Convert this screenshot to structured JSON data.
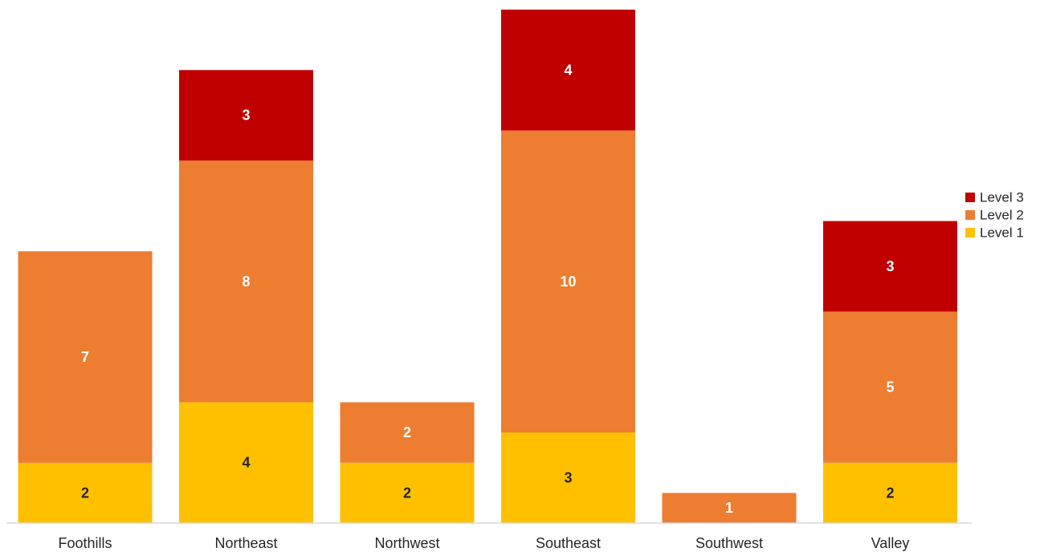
{
  "chart_data": {
    "type": "bar",
    "stacked": true,
    "title": "",
    "xlabel": "",
    "ylabel": "",
    "ylim": [
      0,
      17
    ],
    "grid": false,
    "legend_position": "right",
    "categories": [
      "Foothills",
      "Northeast",
      "Northwest",
      "Southeast",
      "Southwest",
      "Valley"
    ],
    "series": [
      {
        "name": "Level 1",
        "color": "#FFC000",
        "label_color": "#262626",
        "values": [
          2,
          4,
          2,
          3,
          0,
          2
        ]
      },
      {
        "name": "Level 2",
        "color": "#ED7D31",
        "label_color": "#FFFFFF",
        "values": [
          7,
          8,
          2,
          10,
          1,
          5
        ]
      },
      {
        "name": "Level 3",
        "color": "#C00000",
        "label_color": "#FFFFFF",
        "values": [
          0,
          3,
          0,
          4,
          0,
          3
        ]
      }
    ],
    "legend_order": [
      "Level 3",
      "Level 2",
      "Level 1"
    ],
    "axis_color": "#D9D9D9"
  }
}
